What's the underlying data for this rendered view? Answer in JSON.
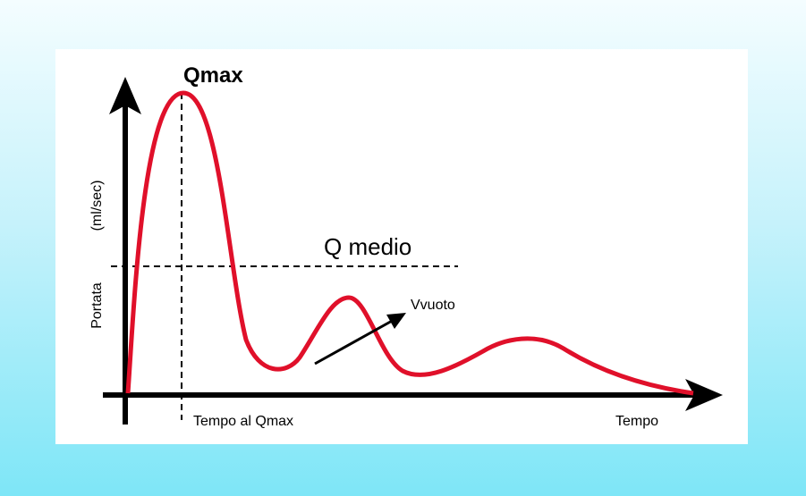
{
  "labels": {
    "peak": "Qmax",
    "mean": "Q medio",
    "voiding": "Vvuoto",
    "time_to_peak": "Tempo al Qmax",
    "x_axis": "Tempo",
    "y_axis": "Portata",
    "y_unit": "(ml/sec)"
  }
}
